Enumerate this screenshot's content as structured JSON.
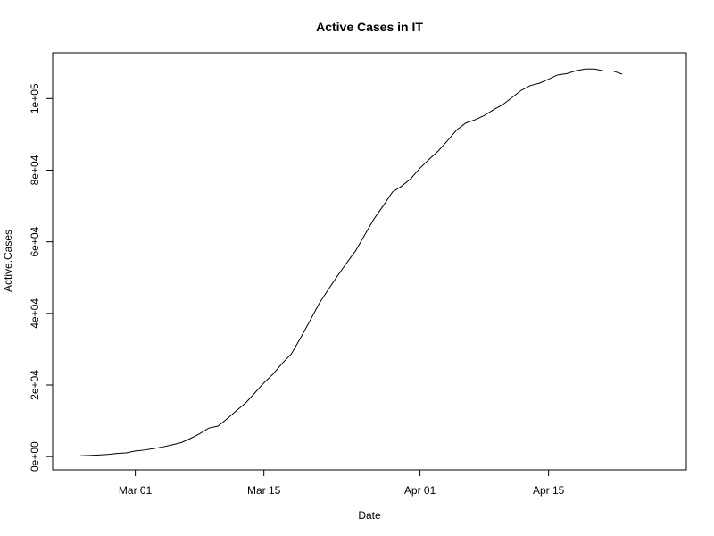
{
  "chart_data": {
    "type": "line",
    "title": "Active Cases in IT",
    "xlabel": "Date",
    "ylabel": "Active.Cases",
    "x_tick_labels": [
      "Mar 01",
      "Mar 15",
      "Apr 01",
      "Apr 15"
    ],
    "x_tick_dates": [
      "2020-03-01",
      "2020-03-15",
      "2020-04-01",
      "2020-04-15"
    ],
    "y_tick_labels": [
      "0e+00",
      "2e+04",
      "4e+04",
      "6e+04",
      "8e+04",
      "1e+05"
    ],
    "y_ticks": [
      0,
      20000,
      40000,
      60000,
      80000,
      100000
    ],
    "xlim": [
      "2020-02-21",
      "2020-04-30"
    ],
    "ylim": [
      -3700,
      112800
    ],
    "line_color": "#000000",
    "series": [
      {
        "x": [
          "2020-02-24",
          "2020-02-25",
          "2020-02-26",
          "2020-02-27",
          "2020-02-28",
          "2020-02-29",
          "2020-03-01",
          "2020-03-02",
          "2020-03-03",
          "2020-03-04",
          "2020-03-05",
          "2020-03-06",
          "2020-03-07",
          "2020-03-08",
          "2020-03-09",
          "2020-03-10",
          "2020-03-11",
          "2020-03-12",
          "2020-03-13",
          "2020-03-14",
          "2020-03-15",
          "2020-03-16",
          "2020-03-17",
          "2020-03-18",
          "2020-03-19",
          "2020-03-20",
          "2020-03-21",
          "2020-03-22",
          "2020-03-23",
          "2020-03-24",
          "2020-03-25",
          "2020-03-26",
          "2020-03-27",
          "2020-03-28",
          "2020-03-29",
          "2020-03-30",
          "2020-03-31",
          "2020-04-01",
          "2020-04-02",
          "2020-04-03",
          "2020-04-04",
          "2020-04-05",
          "2020-04-06",
          "2020-04-07",
          "2020-04-08",
          "2020-04-09",
          "2020-04-10",
          "2020-04-11",
          "2020-04-12",
          "2020-04-13",
          "2020-04-14",
          "2020-04-15",
          "2020-04-16",
          "2020-04-17",
          "2020-04-18",
          "2020-04-19",
          "2020-04-20",
          "2020-04-21",
          "2020-04-22",
          "2020-04-23"
        ],
        "values": [
          221,
          311,
          443,
          615,
          883,
          1049,
          1577,
          1835,
          2263,
          2706,
          3296,
          3916,
          5061,
          6387,
          7985,
          8514,
          10590,
          12839,
          14955,
          17750,
          20603,
          23073,
          26062,
          28710,
          33190,
          37860,
          42681,
          46638,
          50418,
          54030,
          57521,
          62013,
          66414,
          70065,
          73880,
          75528,
          77635,
          80572,
          83049,
          85388,
          88274,
          91246,
          93187,
          94067,
          95262,
          96877,
          98273,
          100269,
          102253,
          103616,
          104291,
          105418,
          106607,
          106962,
          107771,
          108257,
          108237,
          107709,
          107699,
          106848
        ]
      }
    ]
  }
}
